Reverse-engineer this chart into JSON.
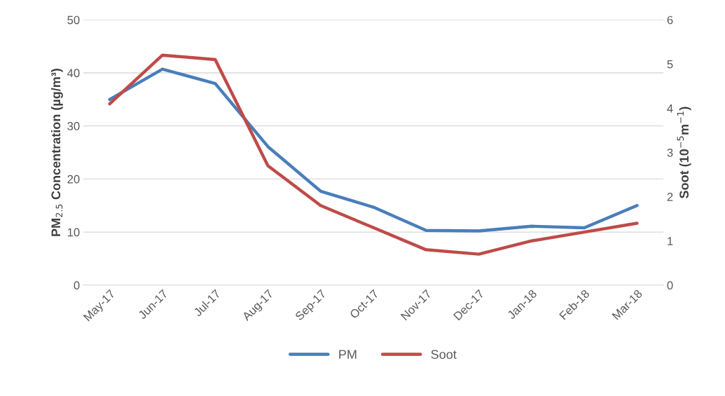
{
  "chart_data": {
    "type": "line",
    "categories": [
      "May-17",
      "Jun-17",
      "Jul-17",
      "Aug-17",
      "Sep-17",
      "Oct-17",
      "Nov-17",
      "Dec-17",
      "Jan-18",
      "Feb-18",
      "Mar-18"
    ],
    "series": [
      {
        "name": "PM",
        "color": "#4a7ebb",
        "values": [
          35.0,
          40.7,
          38.0,
          26.1,
          17.7,
          14.7,
          10.3,
          10.2,
          11.1,
          10.8,
          15.0
        ]
      },
      {
        "name": "Soot",
        "color": "#be4b48",
        "axis": "y2",
        "values": [
          4.1,
          5.2,
          5.1,
          2.7,
          1.8,
          1.3,
          0.8,
          0.7,
          1.0,
          1.2,
          1.4
        ]
      }
    ],
    "ylabel": "PM$_{2.5}$ Concentration (µg/m³)",
    "y2label": "Soot (10$^{−5}$m$^{−1}$)",
    "ylim": [
      0,
      50
    ],
    "yticks": [
      0,
      10,
      20,
      30,
      40,
      50
    ],
    "y2lim": [
      0,
      6
    ],
    "y2ticks": [
      0,
      1,
      2,
      3,
      4,
      5,
      6
    ],
    "grid": "y",
    "legend": "bottom",
    "marker": "none",
    "line_style": "solid"
  }
}
